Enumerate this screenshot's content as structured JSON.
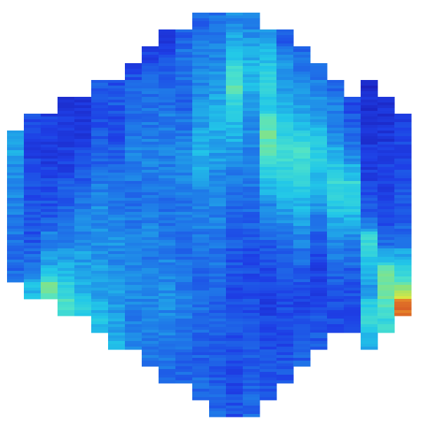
{
  "chart_data": {
    "type": "heatmap",
    "title": "",
    "xlabel": "",
    "ylabel": "",
    "colormap": [
      "#1a1ab3",
      "#1e3fe6",
      "#1f7fe8",
      "#22c8e8",
      "#4fe3c9",
      "#9be36a",
      "#e8e83a",
      "#e88a2a",
      "#c22020"
    ],
    "value_range": [
      0,
      1
    ],
    "rows": 24,
    "columns": [
      {
        "col": 0,
        "row_start": 7,
        "row_end": 16,
        "values": [
          0.34,
          0.31,
          0.29,
          0.27,
          0.25,
          0.24,
          0.23,
          0.22,
          0.21
        ]
      },
      {
        "col": 1,
        "row_start": 6,
        "row_end": 17,
        "values": [
          0.15,
          0.14,
          0.13,
          0.14,
          0.15,
          0.16,
          0.17,
          0.16,
          0.19,
          0.26,
          0.35
        ]
      },
      {
        "col": 2,
        "row_start": 6,
        "row_end": 17,
        "values": [
          0.12,
          0.11,
          0.12,
          0.13,
          0.15,
          0.16,
          0.18,
          0.25,
          0.29,
          0.36,
          0.54
        ]
      },
      {
        "col": 3,
        "row_start": 5,
        "row_end": 18,
        "values": [
          0.06,
          0.1,
          0.11,
          0.12,
          0.13,
          0.18,
          0.19,
          0.2,
          0.24,
          0.31,
          0.33,
          0.42,
          0.48
        ]
      },
      {
        "col": 4,
        "row_start": 5,
        "row_end": 18,
        "values": [
          0.1,
          0.11,
          0.08,
          0.14,
          0.18,
          0.19,
          0.22,
          0.25,
          0.27,
          0.31,
          0.3,
          0.33,
          0.4
        ]
      },
      {
        "col": 5,
        "row_start": 4,
        "row_end": 19,
        "values": [
          0.18,
          0.16,
          0.14,
          0.17,
          0.19,
          0.22,
          0.24,
          0.27,
          0.28,
          0.26,
          0.28,
          0.3,
          0.31,
          0.33,
          0.37
        ]
      },
      {
        "col": 6,
        "row_start": 4,
        "row_end": 20,
        "values": [
          0.16,
          0.18,
          0.15,
          0.15,
          0.18,
          0.21,
          0.23,
          0.24,
          0.26,
          0.28,
          0.27,
          0.29,
          0.31,
          0.3,
          0.32,
          0.33
        ]
      },
      {
        "col": 7,
        "row_start": 3,
        "row_end": 20,
        "values": [
          0.13,
          0.21,
          0.19,
          0.22,
          0.23,
          0.25,
          0.26,
          0.23,
          0.22,
          0.24,
          0.25,
          0.26,
          0.27,
          0.28,
          0.26,
          0.25,
          0.28
        ]
      },
      {
        "col": 8,
        "row_start": 2,
        "row_end": 21,
        "values": [
          0.11,
          0.17,
          0.22,
          0.21,
          0.23,
          0.24,
          0.26,
          0.25,
          0.22,
          0.23,
          0.26,
          0.25,
          0.24,
          0.25,
          0.26,
          0.27,
          0.26,
          0.25,
          0.24
        ]
      },
      {
        "col": 9,
        "row_start": 1,
        "row_end": 22,
        "values": [
          0.1,
          0.13,
          0.19,
          0.21,
          0.22,
          0.24,
          0.23,
          0.25,
          0.25,
          0.24,
          0.23,
          0.22,
          0.24,
          0.25,
          0.26,
          0.28,
          0.27,
          0.26,
          0.25,
          0.24,
          0.22
        ]
      },
      {
        "col": 10,
        "row_start": 1,
        "row_end": 22,
        "values": [
          0.18,
          0.22,
          0.23,
          0.21,
          0.2,
          0.22,
          0.24,
          0.27,
          0.26,
          0.25,
          0.24,
          0.23,
          0.22,
          0.21,
          0.23,
          0.24,
          0.25,
          0.24,
          0.22,
          0.21,
          0.2
        ]
      },
      {
        "col": 11,
        "row_start": 0,
        "row_end": 23,
        "values": [
          0.2,
          0.22,
          0.24,
          0.26,
          0.27,
          0.28,
          0.3,
          0.32,
          0.34,
          0.33,
          0.28,
          0.26,
          0.25,
          0.24,
          0.22,
          0.21,
          0.2,
          0.22,
          0.21,
          0.2,
          0.19,
          0.2,
          0.21
        ]
      },
      {
        "col": 12,
        "row_start": 0,
        "row_end": 24,
        "values": [
          0.22,
          0.24,
          0.26,
          0.28,
          0.3,
          0.32,
          0.34,
          0.33,
          0.31,
          0.29,
          0.27,
          0.26,
          0.25,
          0.24,
          0.23,
          0.22,
          0.21,
          0.2,
          0.19,
          0.18,
          0.17,
          0.18,
          0.19,
          0.2
        ]
      },
      {
        "col": 13,
        "row_start": 0,
        "row_end": 24,
        "values": [
          0.26,
          0.3,
          0.38,
          0.45,
          0.52,
          0.44,
          0.37,
          0.34,
          0.3,
          0.26,
          0.24,
          0.22,
          0.2,
          0.18,
          0.17,
          0.16,
          0.15,
          0.16,
          0.17,
          0.16,
          0.15,
          0.14,
          0.15,
          0.16
        ]
      },
      {
        "col": 14,
        "row_start": 0,
        "row_end": 24,
        "values": [
          0.25,
          0.28,
          0.33,
          0.36,
          0.34,
          0.31,
          0.29,
          0.27,
          0.25,
          0.24,
          0.23,
          0.21,
          0.19,
          0.17,
          0.16,
          0.15,
          0.14,
          0.15,
          0.16,
          0.17,
          0.18,
          0.19,
          0.2,
          0.21
        ]
      },
      {
        "col": 15,
        "row_start": 1,
        "row_end": 23,
        "values": [
          0.31,
          0.35,
          0.4,
          0.42,
          0.38,
          0.48,
          0.55,
          0.52,
          0.43,
          0.35,
          0.28,
          0.24,
          0.2,
          0.16,
          0.14,
          0.13,
          0.12,
          0.13,
          0.14,
          0.15,
          0.16,
          0.17
        ]
      },
      {
        "col": 16,
        "row_start": 1,
        "row_end": 22,
        "values": [
          0.16,
          0.24,
          0.28,
          0.31,
          0.34,
          0.38,
          0.42,
          0.47,
          0.44,
          0.39,
          0.33,
          0.27,
          0.23,
          0.2,
          0.18,
          0.16,
          0.15,
          0.14,
          0.15,
          0.16,
          0.17
        ]
      },
      {
        "col": 17,
        "row_start": 2,
        "row_end": 21,
        "values": [
          0.2,
          0.24,
          0.26,
          0.3,
          0.35,
          0.41,
          0.47,
          0.44,
          0.4,
          0.36,
          0.31,
          0.27,
          0.23,
          0.19,
          0.16,
          0.14,
          0.15,
          0.17,
          0.19
        ]
      },
      {
        "col": 18,
        "row_start": 3,
        "row_end": 20,
        "values": [
          0.22,
          0.24,
          0.27,
          0.32,
          0.37,
          0.4,
          0.38,
          0.34,
          0.3,
          0.24,
          0.19,
          0.15,
          0.13,
          0.12,
          0.14,
          0.16,
          0.18
        ]
      },
      {
        "col": 19,
        "row_start": 4,
        "row_end": 19,
        "values": [
          0.2,
          0.24,
          0.26,
          0.28,
          0.33,
          0.38,
          0.44,
          0.39,
          0.34,
          0.29,
          0.24,
          0.2,
          0.17,
          0.15,
          0.16
        ]
      },
      {
        "col": 20,
        "row_start": 5,
        "row_end": 19,
        "values": [
          0.14,
          0.18,
          0.22,
          0.26,
          0.34,
          0.44,
          0.4,
          0.34,
          0.28,
          0.23,
          0.19,
          0.16,
          0.15,
          0.17
        ]
      },
      {
        "col": 21,
        "row_start": 4,
        "row_end": 20,
        "values": [
          0.06,
          0.08,
          0.09,
          0.1,
          0.11,
          0.12,
          0.13,
          0.18,
          0.2,
          0.45,
          0.42,
          0.34,
          0.3,
          0.38,
          0.45,
          0.33
        ]
      },
      {
        "col": 22,
        "row_start": 5,
        "row_end": 19,
        "values": [
          0.08,
          0.09,
          0.1,
          0.11,
          0.12,
          0.13,
          0.14,
          0.16,
          0.18,
          0.3,
          0.55,
          0.58,
          0.52,
          0.44
        ]
      },
      {
        "col": 23,
        "row_start": 6,
        "row_end": 18,
        "values": [
          0.12,
          0.13,
          0.14,
          0.15,
          0.16,
          0.17,
          0.18,
          0.22,
          0.3,
          0.4,
          0.55,
          0.92
        ]
      }
    ]
  }
}
